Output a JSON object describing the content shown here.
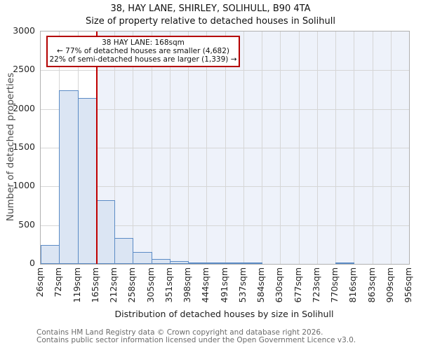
{
  "chart_data": {
    "type": "bar",
    "title": "38, HAY LANE, SHIRLEY, SOLIHULL, B90 4TA",
    "subtitle": "Size of property relative to detached houses in Solihull",
    "xlabel": "Distribution of detached houses by size in Solihull",
    "ylabel": "Number of detached properties",
    "ylim": [
      0,
      3000
    ],
    "yticks": [
      0,
      500,
      1000,
      1500,
      2000,
      2500,
      3000
    ],
    "x_tick_labels": [
      "26sqm",
      "72sqm",
      "119sqm",
      "165sqm",
      "212sqm",
      "258sqm",
      "305sqm",
      "351sqm",
      "398sqm",
      "444sqm",
      "491sqm",
      "537sqm",
      "584sqm",
      "630sqm",
      "677sqm",
      "723sqm",
      "770sqm",
      "816sqm",
      "863sqm",
      "909sqm",
      "956sqm"
    ],
    "bin_edges_sqm": [
      26,
      72,
      119,
      165,
      212,
      258,
      305,
      351,
      398,
      444,
      491,
      537,
      584,
      630,
      677,
      723,
      770,
      816,
      863,
      909,
      956
    ],
    "values": [
      245,
      2240,
      2140,
      820,
      330,
      155,
      65,
      38,
      22,
      14,
      6,
      3,
      0,
      0,
      0,
      0,
      16,
      0,
      0,
      0
    ],
    "marker_sqm": 168,
    "grid": true,
    "annotation": {
      "line1": "38 HAY LANE: 168sqm",
      "line2": "← 77% of detached houses are smaller (4,682)",
      "line3": "22% of semi-detached houses are larger (1,339) →"
    }
  },
  "footer": {
    "line1": "Contains HM Land Registry data © Crown copyright and database right 2026.",
    "line2": "Contains public sector information licensed under the Open Government Licence v3.0."
  },
  "colors": {
    "bar_fill": "#dbe5f3",
    "bar_edge": "#5b8bc5",
    "marker_line": "#c00000",
    "annotation_border": "#b40000",
    "shade_region": "#eef2fa",
    "gridline": "#d6d6d6",
    "axis_border": "#b0b0b0"
  }
}
